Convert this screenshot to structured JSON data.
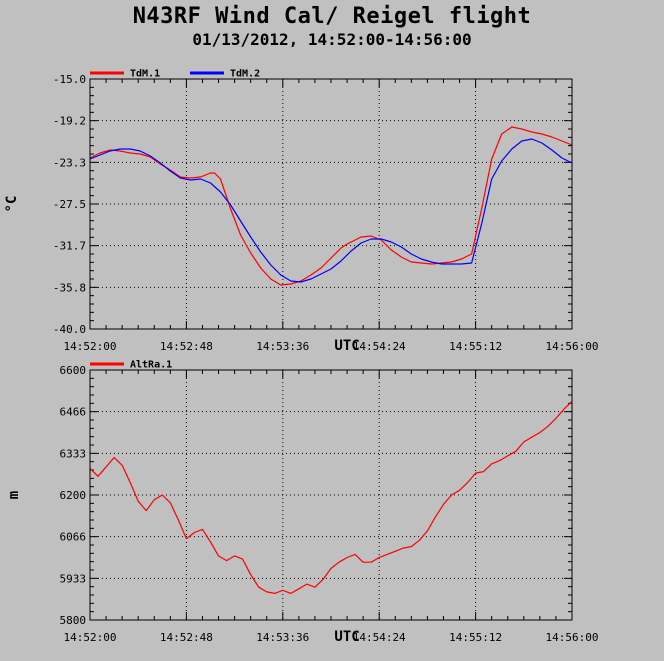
{
  "title": "N43RF Wind Cal/ Reigel flight",
  "subtitle": "01/13/2012, 14:52:00-14:56:00",
  "chart_data": [
    {
      "type": "line",
      "xlabel": "UTC",
      "ylabel": "°C",
      "x_ticks": [
        "14:52:00",
        "14:52:48",
        "14:53:36",
        "14:54:24",
        "14:55:12",
        "14:56:00"
      ],
      "y_ticks": [
        "-15.0",
        "-19.2",
        "-23.3",
        "-27.5",
        "-31.7",
        "-35.8",
        "-40.0"
      ],
      "xlim": [
        0,
        240
      ],
      "ylim": [
        -40.0,
        -15.0
      ],
      "grid": true,
      "legend": "top-left",
      "series": [
        {
          "name": "TdM.1",
          "color": "#ff0000",
          "x": [
            0,
            5,
            10,
            15,
            20,
            25,
            30,
            35,
            40,
            45,
            50,
            55,
            60,
            62,
            65,
            70,
            75,
            80,
            85,
            90,
            95,
            100,
            105,
            110,
            115,
            120,
            125,
            128,
            130,
            135,
            140,
            145,
            150,
            155,
            160,
            165,
            170,
            175,
            180,
            185,
            190,
            195,
            200,
            205,
            210,
            215,
            220,
            225,
            230,
            235,
            240
          ],
          "y": [
            -22.9,
            -22.4,
            -22.1,
            -22.2,
            -22.4,
            -22.5,
            -22.8,
            -23.5,
            -24.1,
            -24.8,
            -24.9,
            -24.8,
            -24.4,
            -24.4,
            -25.0,
            -28.0,
            -30.6,
            -32.4,
            -33.9,
            -35.0,
            -35.6,
            -35.5,
            -35.2,
            -34.6,
            -33.9,
            -32.9,
            -31.9,
            -31.5,
            -31.3,
            -30.8,
            -30.7,
            -31.1,
            -32.1,
            -32.8,
            -33.3,
            -33.4,
            -33.5,
            -33.4,
            -33.3,
            -33.0,
            -32.5,
            -28.0,
            -23.0,
            -20.5,
            -19.8,
            -20.0,
            -20.3,
            -20.5,
            -20.8,
            -21.2,
            -21.6
          ]
        },
        {
          "name": "TdM.2",
          "color": "#0000ff",
          "x": [
            0,
            5,
            10,
            15,
            20,
            25,
            30,
            35,
            40,
            45,
            50,
            55,
            60,
            65,
            70,
            75,
            80,
            85,
            90,
            95,
            100,
            105,
            110,
            115,
            120,
            125,
            130,
            135,
            140,
            145,
            150,
            155,
            160,
            165,
            170,
            175,
            180,
            185,
            190,
            195,
            200,
            205,
            210,
            215,
            220,
            225,
            230,
            235,
            240
          ],
          "y": [
            -23.0,
            -22.6,
            -22.2,
            -22.0,
            -22.0,
            -22.2,
            -22.7,
            -23.4,
            -24.2,
            -24.9,
            -25.1,
            -25.0,
            -25.4,
            -26.3,
            -27.6,
            -29.2,
            -30.8,
            -32.3,
            -33.6,
            -34.6,
            -35.2,
            -35.3,
            -35.0,
            -34.5,
            -34.0,
            -33.2,
            -32.2,
            -31.4,
            -31.0,
            -31.0,
            -31.3,
            -31.8,
            -32.5,
            -33.0,
            -33.3,
            -33.5,
            -33.5,
            -33.5,
            -33.4,
            -29.5,
            -25.0,
            -23.2,
            -22.0,
            -21.2,
            -21.0,
            -21.4,
            -22.1,
            -22.9,
            -23.4
          ]
        }
      ]
    },
    {
      "type": "line",
      "xlabel": "UTC",
      "ylabel": "m",
      "x_ticks": [
        "14:52:00",
        "14:52:48",
        "14:53:36",
        "14:54:24",
        "14:55:12",
        "14:56:00"
      ],
      "y_ticks": [
        "6600",
        "6466",
        "6333",
        "6200",
        "6066",
        "5933",
        "5800"
      ],
      "xlim": [
        0,
        240
      ],
      "ylim": [
        5800,
        6600
      ],
      "grid": true,
      "legend": "top-left",
      "series": [
        {
          "name": "AltRa.1",
          "color": "#ff0000",
          "x": [
            0,
            4,
            8,
            12,
            16,
            20,
            24,
            28,
            32,
            36,
            40,
            44,
            48,
            52,
            56,
            60,
            64,
            68,
            72,
            76,
            80,
            84,
            88,
            92,
            96,
            100,
            104,
            108,
            112,
            116,
            120,
            124,
            128,
            132,
            136,
            140,
            144,
            148,
            152,
            156,
            160,
            164,
            168,
            172,
            176,
            180,
            184,
            188,
            192,
            196,
            200,
            204,
            208,
            212,
            216,
            220,
            224,
            228,
            232,
            236,
            240
          ],
          "y": [
            6285,
            6260,
            6290,
            6320,
            6295,
            6240,
            6180,
            6150,
            6185,
            6200,
            6175,
            6120,
            6060,
            6080,
            6090,
            6050,
            6005,
            5990,
            6005,
            5995,
            5945,
            5905,
            5890,
            5885,
            5895,
            5885,
            5900,
            5915,
            5905,
            5930,
            5965,
            5985,
            6000,
            6010,
            5985,
            5985,
            6000,
            6010,
            6020,
            6030,
            6035,
            6055,
            6085,
            6130,
            6170,
            6200,
            6215,
            6240,
            6270,
            6275,
            6300,
            6310,
            6325,
            6340,
            6370,
            6385,
            6400,
            6420,
            6445,
            6475,
            6500
          ]
        }
      ]
    }
  ]
}
